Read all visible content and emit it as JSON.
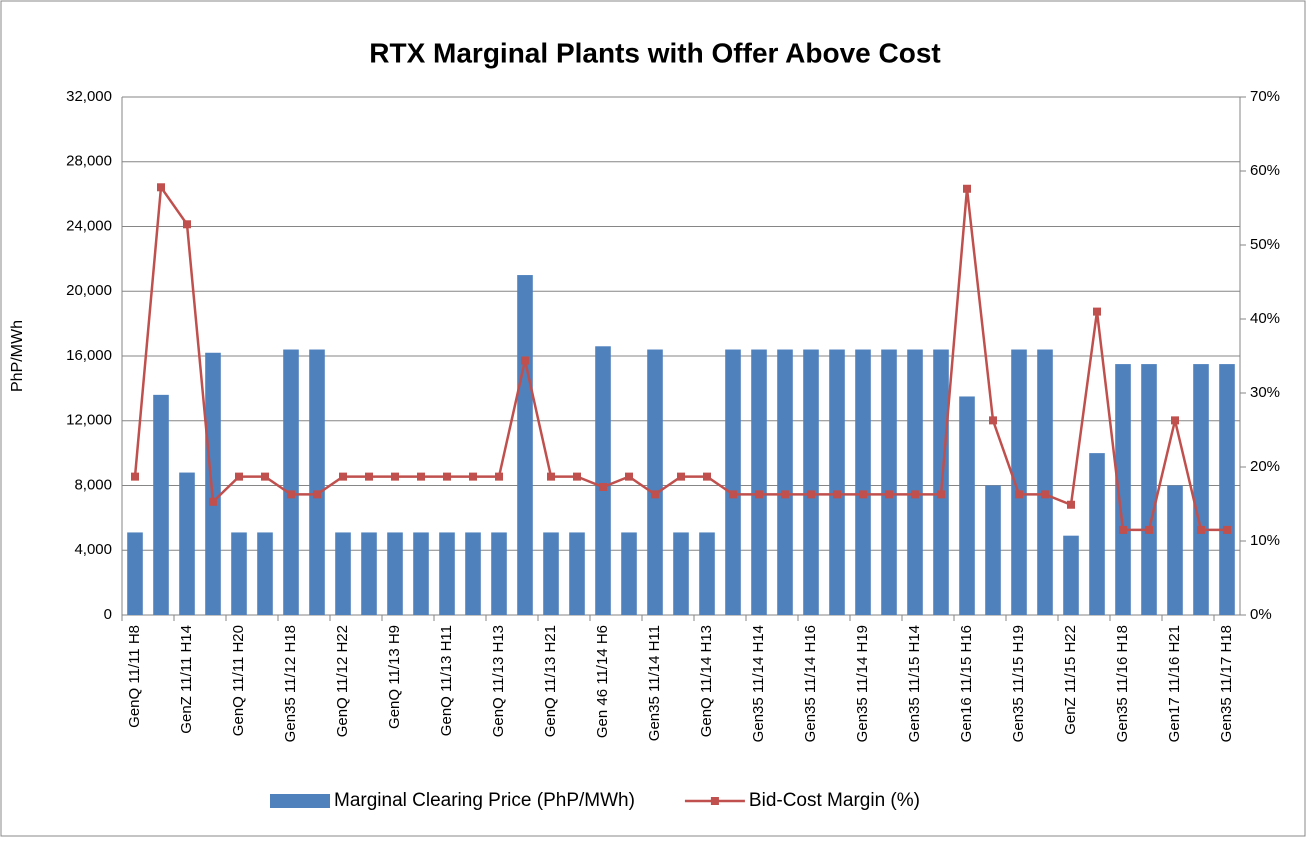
{
  "chart_data": {
    "type": "bar-line",
    "title": "RTX Marginal Plants with Offer Above Cost",
    "y_label": "PhP/MWh",
    "categories": [
      "GenQ 11/11 H8",
      null,
      "GenZ 11/11 H14",
      null,
      "GenQ 11/11 H20",
      null,
      "Gen35 11/12 H18",
      null,
      "GenQ 11/12 H22",
      null,
      "GenQ 11/13 H9",
      null,
      "GenQ 11/13 H11",
      null,
      "GenQ 11/13 H13",
      null,
      "GenQ 11/13 H21",
      null,
      "Gen 46 11/14 H6",
      null,
      "Gen35 11/14 H11",
      null,
      "GenQ 11/14 H13",
      null,
      "Gen35 11/14 H14",
      null,
      "Gen35 11/14 H16",
      null,
      "Gen35 11/14 H19",
      null,
      "Gen35 11/15 H14",
      null,
      "Gen16 11/15 H16",
      null,
      "Gen35 11/15 H19",
      null,
      "GenZ 11/15 H22",
      null,
      "Gen35 11/16 H18",
      null,
      "Gen17 11/16 H21",
      null,
      "Gen35 11/17 H18"
    ],
    "series": [
      {
        "name": "Marginal Clearing Price (PhP/MWh)",
        "color": "#4f81bd",
        "kind": "bar",
        "values": [
          5100,
          13600,
          8800,
          16200,
          5100,
          5100,
          16400,
          16400,
          5100,
          5100,
          5100,
          5100,
          5100,
          5100,
          5100,
          21000,
          5100,
          5100,
          16600,
          5100,
          16400,
          5100,
          5100,
          16400,
          16400,
          16400,
          16400,
          16400,
          16400,
          16400,
          16400,
          16400,
          13500,
          8000,
          16400,
          16400,
          4900,
          10000,
          15500,
          15500,
          8000,
          15500,
          15500
        ]
      },
      {
        "name": "Bid-Cost Margin (%)",
        "color": "#c0504d",
        "kind": "line",
        "axis": "y2",
        "values": [
          18.7,
          57.8,
          52.8,
          15.3,
          18.7,
          18.7,
          16.3,
          16.3,
          18.7,
          18.7,
          18.7,
          18.7,
          18.7,
          18.7,
          18.7,
          34.4,
          18.7,
          18.7,
          17.3,
          18.7,
          16.3,
          18.7,
          18.7,
          16.3,
          16.3,
          16.3,
          16.3,
          16.3,
          16.3,
          16.3,
          16.3,
          16.3,
          57.6,
          26.3,
          16.3,
          16.3,
          14.9,
          41.0,
          11.5,
          11.5,
          26.3,
          11.5,
          11.5
        ]
      }
    ],
    "ylim": [
      0,
      32000
    ],
    "yticks": [
      0,
      {
        "value": 4000,
        "label": "4,000"
      },
      {
        "value": 8000,
        "label": "8,000"
      },
      {
        "value": 12000,
        "label": "12,000"
      },
      {
        "value": 16000,
        "label": "16,000"
      },
      {
        "value": 20000,
        "label": "20,000"
      },
      {
        "value": 24000,
        "label": "24,000"
      },
      {
        "value": 28000,
        "label": "28,000"
      },
      {
        "value": 32000,
        "label": "32,000"
      }
    ],
    "y2lim": [
      0,
      70
    ],
    "y2ticks": [
      {
        "value": 0,
        "label": "0%"
      },
      {
        "value": 10,
        "label": "10%"
      },
      {
        "value": 20,
        "label": "20%"
      },
      {
        "value": 30,
        "label": "30%"
      },
      {
        "value": 40,
        "label": "40%"
      },
      {
        "value": 50,
        "label": "50%"
      },
      {
        "value": 60,
        "label": "60%"
      },
      {
        "value": 70,
        "label": "70%"
      }
    ],
    "grid": true,
    "legend": "bottom"
  }
}
